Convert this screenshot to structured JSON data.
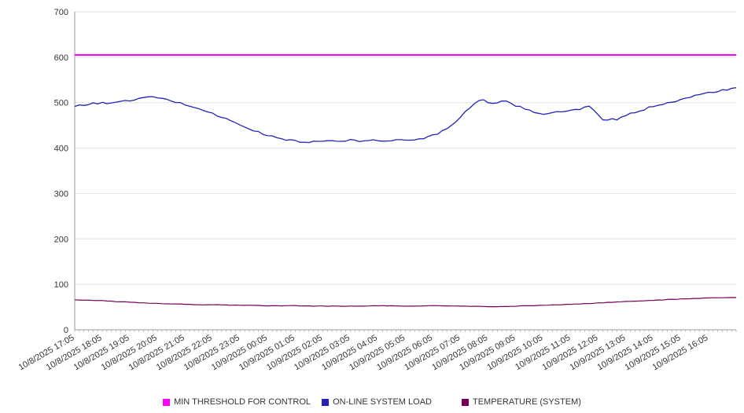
{
  "axis": {
    "line_color": "#999999",
    "grid_color": "#e2e2e2",
    "text_color": "#333333"
  },
  "chart_data": {
    "type": "line",
    "title": "",
    "xlabel": "",
    "ylabel": "",
    "ylim": [
      0,
      700
    ],
    "ytick_step": 100,
    "x_hours": 24,
    "grid": "horizontal",
    "legend_position": "bottom",
    "categories": [
      "10/8/2025 17:05",
      "10/8/2025 18:05",
      "10/8/2025 19:05",
      "10/8/2025 20:05",
      "10/8/2025 21:05",
      "10/8/2025 22:05",
      "10/8/2025 23:05",
      "10/9/2025 00:05",
      "10/9/2025 01:05",
      "10/9/2025 02:05",
      "10/9/2025 03:05",
      "10/9/2025 04:05",
      "10/9/2025 05:05",
      "10/9/2025 06:05",
      "10/9/2025 07:05",
      "10/9/2025 08:05",
      "10/9/2025 09:05",
      "10/9/2025 10:05",
      "10/9/2025 11:05",
      "10/9/2025 12:05",
      "10/9/2025 13:05",
      "10/9/2025 14:05",
      "10/9/2025 15:05",
      "10/9/2025 16:05"
    ],
    "series": [
      {
        "name": "MIN THRESHOLD FOR CONTROL",
        "color": "#ff00ff",
        "width": 2,
        "jitter": 0,
        "points": [
          [
            0,
            605
          ],
          [
            24,
            605
          ]
        ]
      },
      {
        "name": "ON-LINE SYSTEM LOAD",
        "color": "#2222bb",
        "width": 1.3,
        "jitter": 2.0,
        "points": [
          [
            0,
            491
          ],
          [
            0.3,
            495
          ],
          [
            0.7,
            498
          ],
          [
            1,
            499
          ],
          [
            1.5,
            501
          ],
          [
            2,
            504
          ],
          [
            2.4,
            510
          ],
          [
            2.7,
            512
          ],
          [
            3,
            511
          ],
          [
            3.3,
            507
          ],
          [
            3.7,
            501
          ],
          [
            4,
            496
          ],
          [
            4.5,
            487
          ],
          [
            5,
            476
          ],
          [
            5.5,
            464
          ],
          [
            6,
            451
          ],
          [
            6.5,
            438
          ],
          [
            7,
            428
          ],
          [
            7.5,
            420
          ],
          [
            8,
            416
          ],
          [
            8.4,
            412
          ],
          [
            8.8,
            414
          ],
          [
            9.2,
            417
          ],
          [
            9.6,
            414
          ],
          [
            10,
            417
          ],
          [
            10.4,
            415
          ],
          [
            10.8,
            417
          ],
          [
            11.2,
            416
          ],
          [
            11.6,
            418
          ],
          [
            12,
            416
          ],
          [
            12.4,
            419
          ],
          [
            12.8,
            424
          ],
          [
            13.2,
            433
          ],
          [
            13.6,
            448
          ],
          [
            14,
            468
          ],
          [
            14.3,
            488
          ],
          [
            14.6,
            503
          ],
          [
            14.8,
            506
          ],
          [
            15,
            500
          ],
          [
            15.2,
            496
          ],
          [
            15.4,
            503
          ],
          [
            15.6,
            506
          ],
          [
            15.8,
            499
          ],
          [
            16,
            494
          ],
          [
            16.3,
            487
          ],
          [
            16.6,
            480
          ],
          [
            17,
            476
          ],
          [
            17.4,
            478
          ],
          [
            17.8,
            481
          ],
          [
            18.2,
            484
          ],
          [
            18.5,
            490
          ],
          [
            18.7,
            492
          ],
          [
            18.9,
            478
          ],
          [
            19.1,
            464
          ],
          [
            19.3,
            459
          ],
          [
            19.5,
            465
          ],
          [
            19.7,
            462
          ],
          [
            20,
            472
          ],
          [
            20.4,
            480
          ],
          [
            20.8,
            488
          ],
          [
            21.2,
            496
          ],
          [
            21.6,
            501
          ],
          [
            22,
            507
          ],
          [
            22.4,
            513
          ],
          [
            22.8,
            519
          ],
          [
            23.2,
            524
          ],
          [
            23.6,
            528
          ],
          [
            24,
            531
          ]
        ]
      },
      {
        "name": "TEMPERATURE (SYSTEM)",
        "color": "#770055",
        "width": 1.2,
        "jitter": 0.5,
        "points": [
          [
            0,
            66
          ],
          [
            0.5,
            65
          ],
          [
            1,
            64
          ],
          [
            1.5,
            62
          ],
          [
            2,
            61
          ],
          [
            2.5,
            59
          ],
          [
            3,
            58
          ],
          [
            3.5,
            57
          ],
          [
            4,
            56
          ],
          [
            4.5,
            55
          ],
          [
            5,
            55
          ],
          [
            6,
            54
          ],
          [
            7,
            53
          ],
          [
            8,
            53
          ],
          [
            9,
            52
          ],
          [
            10,
            52
          ],
          [
            11,
            53
          ],
          [
            12,
            52
          ],
          [
            13,
            53
          ],
          [
            14,
            52
          ],
          [
            15,
            51
          ],
          [
            15.5,
            51
          ],
          [
            16,
            52
          ],
          [
            17,
            54
          ],
          [
            18,
            56
          ],
          [
            19,
            59
          ],
          [
            20,
            62
          ],
          [
            21,
            65
          ],
          [
            21.8,
            67
          ],
          [
            22.5,
            69
          ],
          [
            23,
            70
          ],
          [
            23.5,
            71
          ],
          [
            24,
            71
          ]
        ]
      }
    ]
  }
}
